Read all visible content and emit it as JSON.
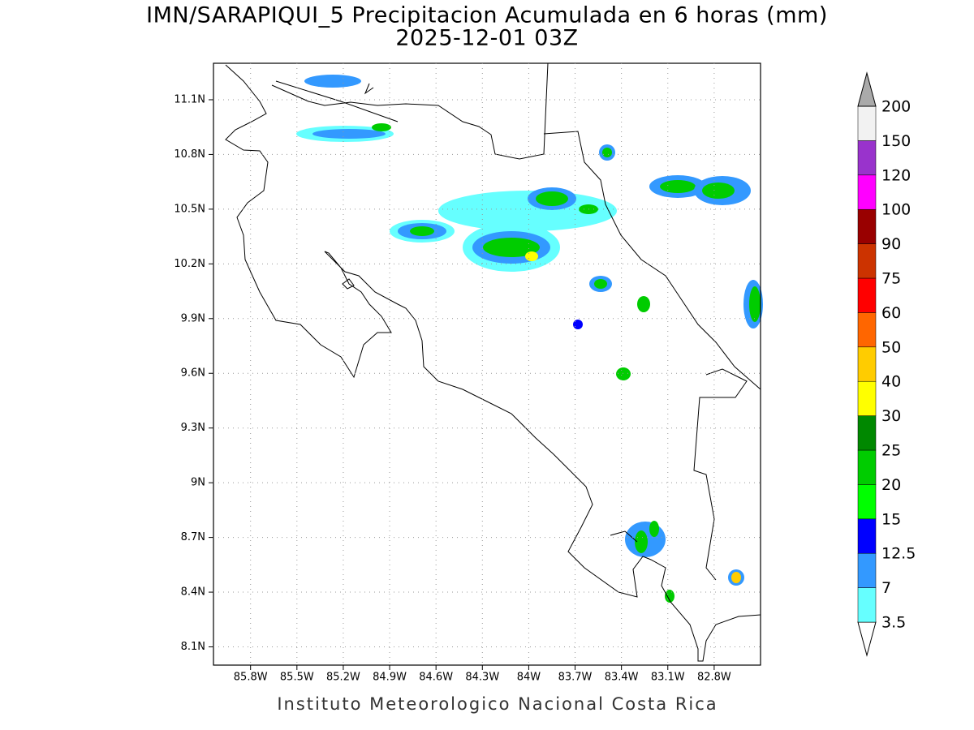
{
  "title": "IMN/SARAPIQUI_5 Precipitacion Acumulada en 6 horas (mm)",
  "subtitle": "2025-12-01 03Z",
  "footer": "Instituto Meteorologico Nacional Costa Rica",
  "map": {
    "xlim": [
      -86.04,
      -82.5
    ],
    "ylim": [
      8.0,
      11.3
    ],
    "grid": true,
    "xticks": [
      {
        "value": -85.8,
        "label": "85.8W"
      },
      {
        "value": -85.5,
        "label": "85.5W"
      },
      {
        "value": -85.2,
        "label": "85.2W"
      },
      {
        "value": -84.9,
        "label": "84.9W"
      },
      {
        "value": -84.6,
        "label": "84.6W"
      },
      {
        "value": -84.3,
        "label": "84.3W"
      },
      {
        "value": -84.0,
        "label": "84W"
      },
      {
        "value": -83.7,
        "label": "83.7W"
      },
      {
        "value": -83.4,
        "label": "83.4W"
      },
      {
        "value": -83.1,
        "label": "83.1W"
      },
      {
        "value": -82.8,
        "label": "82.8W"
      }
    ],
    "yticks": [
      {
        "value": 8.1,
        "label": "8.1N"
      },
      {
        "value": 8.4,
        "label": "8.4N"
      },
      {
        "value": 8.7,
        "label": "8.7N"
      },
      {
        "value": 9.0,
        "label": "9N"
      },
      {
        "value": 9.3,
        "label": "9.3N"
      },
      {
        "value": 9.6,
        "label": "9.6N"
      },
      {
        "value": 9.9,
        "label": "9.9N"
      },
      {
        "value": 10.2,
        "label": "10.2N"
      },
      {
        "value": 10.5,
        "label": "10.5N"
      },
      {
        "value": 10.8,
        "label": "10.8N"
      },
      {
        "value": 11.1,
        "label": "11.1N"
      }
    ]
  },
  "colorbar": {
    "levels": [
      3.5,
      7,
      12.5,
      15,
      20,
      25,
      30,
      40,
      50,
      60,
      75,
      90,
      100,
      120,
      150,
      200
    ],
    "colors": [
      "#ffffff",
      "#66ffff",
      "#3399ff",
      "#0000ff",
      "#00ff00",
      "#00cc00",
      "#008800",
      "#ffff00",
      "#ffcc00",
      "#ff6600",
      "#ff0000",
      "#cc3300",
      "#990000",
      "#ff00ff",
      "#9933cc",
      "#f2f2f2",
      "#aaaaaa"
    ]
  }
}
